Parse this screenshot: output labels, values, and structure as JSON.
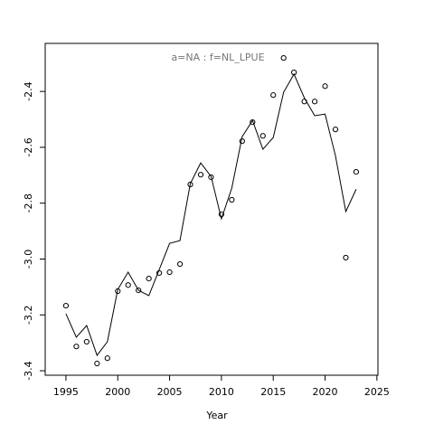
{
  "chart_data": {
    "type": "scatter",
    "title": "a=NA  :  f=NL_LPUE",
    "xlabel": "Year",
    "x": [
      1995,
      1996,
      1997,
      1998,
      1999,
      2000,
      2001,
      2002,
      2003,
      2004,
      2005,
      2006,
      2007,
      2008,
      2009,
      2010,
      2011,
      2012,
      2013,
      2014,
      2015,
      2016,
      2017,
      2018,
      2019,
      2020,
      2021,
      2022,
      2023
    ],
    "series": [
      {
        "type": "scatter",
        "color": "#000000",
        "values": [
          -3.167,
          -3.313,
          -3.296,
          -3.374,
          -3.355,
          -3.115,
          -3.093,
          -3.112,
          -3.07,
          -3.05,
          -3.047,
          -3.018,
          -2.733,
          -2.698,
          -2.707,
          -2.84,
          -2.788,
          -2.578,
          -2.51,
          -2.559,
          -2.413,
          -2.28,
          -2.332,
          -2.436,
          -2.436,
          -2.381,
          -2.536,
          -2.995,
          -2.688
        ]
      },
      {
        "type": "line",
        "color": "#000000",
        "values": [
          -3.196,
          -3.28,
          -3.238,
          -3.345,
          -3.296,
          -3.109,
          -3.047,
          -3.112,
          -3.131,
          -3.038,
          -2.944,
          -2.934,
          -2.73,
          -2.656,
          -2.704,
          -2.856,
          -2.746,
          -2.562,
          -2.504,
          -2.607,
          -2.565,
          -2.403,
          -2.338,
          -2.423,
          -2.487,
          -2.481,
          -2.63,
          -2.83,
          -2.75
        ]
      }
    ],
    "xlim": [
      1993,
      2025.1
    ],
    "ylim": [
      -3.416,
      -2.228
    ],
    "xticks": [
      1995,
      2000,
      2005,
      2010,
      2015,
      2020,
      2025
    ],
    "yticks": [
      -3.4,
      -3.2,
      {
        "value": -3.0,
        "label": "-3.0"
      },
      -2.8,
      -2.6,
      -2.4
    ]
  }
}
